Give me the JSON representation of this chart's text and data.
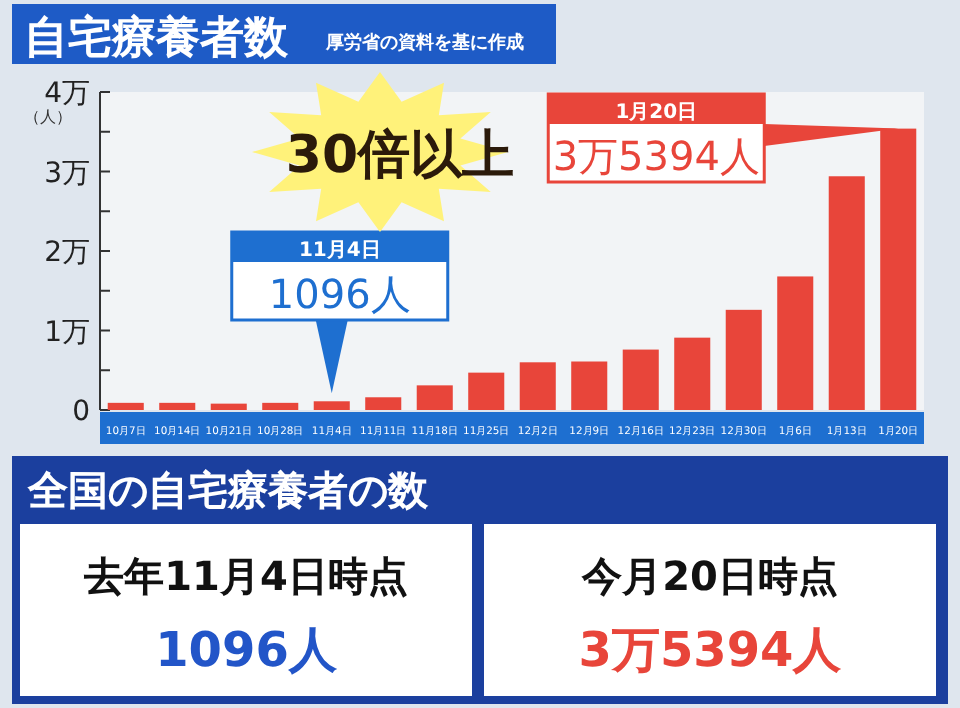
{
  "chart_data": [
    {
      "type": "bar",
      "title": "自宅療養者数",
      "subtitle": "厚労省の資料を基に作成",
      "ylabel": "（人）",
      "categories": [
        "10月7日",
        "10月14日",
        "10月21日",
        "10月28日",
        "11月4日",
        "11月11日",
        "11月18日",
        "11月25日",
        "12月2日",
        "12月9日",
        "12月16日",
        "12月23日",
        "12月30日",
        "1月6日",
        "1月13日",
        "1月20日"
      ],
      "values": [
        0.09,
        0.09,
        0.08,
        0.09,
        0.1096,
        0.16,
        0.31,
        0.47,
        0.6,
        0.61,
        0.76,
        0.91,
        1.26,
        1.68,
        2.94,
        3.5394
      ],
      "color": "#e8453a",
      "ylim": [
        0,
        4
      ],
      "yticks": [
        0,
        {
          "value": 0.5,
          "label": null
        },
        {
          "value": 1,
          "label": "1万"
        },
        {
          "value": 1.5,
          "label": null
        },
        {
          "value": 2,
          "label": "2万"
        },
        {
          "value": 2.5,
          "label": null
        },
        {
          "value": 3,
          "label": "3万"
        },
        {
          "value": 3.5,
          "label": null
        },
        {
          "value": 4,
          "label": "4万"
        }
      ],
      "annotations": [
        {
          "text": "11月4日\n1096人",
          "x": "11月4日",
          "y": 0.1096
        },
        {
          "text": "1月20日\n3万5394人",
          "x": "1月20日",
          "y": 3.5394
        },
        "30倍以上"
      ]
    },
    {
      "type": "other",
      "title": "全国の自宅療養者の数",
      "annotations": [
        "去年11月4日時点",
        "1096人",
        "今月20日時点",
        "3万5394人"
      ]
    }
  ]
}
